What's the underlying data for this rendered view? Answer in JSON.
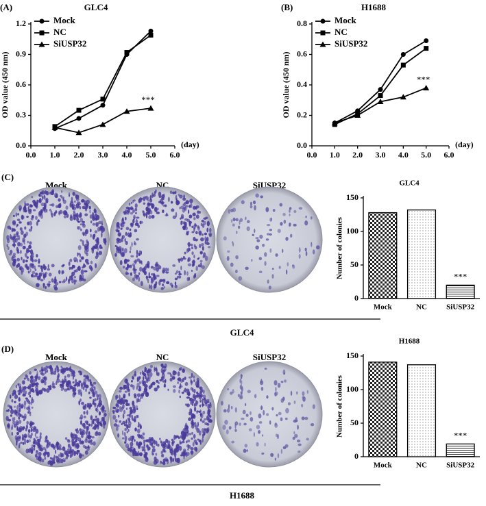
{
  "chart_data": [
    {
      "type": "line",
      "panel": "(A)",
      "title": "GLC4",
      "ylabel": "OD value (450 nm)",
      "xlabel": "(day)",
      "annotation": "***",
      "x": [
        1,
        2,
        3,
        4,
        5
      ],
      "xlim": [
        0,
        6
      ],
      "xticks": [
        {
          "value": 0,
          "label": "0.0"
        },
        {
          "value": 1,
          "label": "1.0"
        },
        {
          "value": 2,
          "label": "2.0"
        },
        {
          "value": 3,
          "label": "3.0"
        },
        {
          "value": 4,
          "label": "4.0"
        },
        {
          "value": 5,
          "label": "5.0"
        },
        {
          "value": 6,
          "label": "6.0"
        }
      ],
      "ylim": [
        0,
        1.2
      ],
      "yticks": [
        {
          "value": 0,
          "label": "0.0"
        },
        0.3,
        0.6,
        0.9,
        1.2
      ],
      "series": [
        {
          "name": "Mock",
          "color": "#000000",
          "marker": "circle",
          "values": [
            0.17,
            0.27,
            0.4,
            0.9,
            1.13
          ]
        },
        {
          "name": "NC",
          "color": "#000000",
          "marker": "square",
          "values": [
            0.19,
            0.35,
            0.46,
            0.92,
            1.09
          ]
        },
        {
          "name": "SiUSP32",
          "color": "#000000",
          "marker": "triangle",
          "values": [
            0.18,
            0.13,
            0.21,
            0.34,
            0.37
          ]
        }
      ]
    },
    {
      "type": "line",
      "panel": "(B)",
      "title": "H1688",
      "ylabel": "OD value (450 nm)",
      "xlabel": "(day)",
      "annotation": "***",
      "x": [
        1,
        2,
        3,
        4,
        5
      ],
      "xlim": [
        0,
        6
      ],
      "xticks": [
        {
          "value": 0,
          "label": "0.0"
        },
        {
          "value": 1,
          "label": "1.0"
        },
        {
          "value": 2,
          "label": "2.0"
        },
        {
          "value": 3,
          "label": "3.0"
        },
        {
          "value": 4,
          "label": "4.0"
        },
        {
          "value": 5,
          "label": "5.0"
        },
        {
          "value": 6,
          "label": "6.0"
        }
      ],
      "ylim": [
        0,
        0.8
      ],
      "yticks": [
        {
          "value": 0,
          "label": "0.0"
        },
        0.2,
        0.4,
        0.6,
        0.8
      ],
      "series": [
        {
          "name": "Mock",
          "color": "#000000",
          "marker": "circle",
          "values": [
            0.15,
            0.23,
            0.37,
            0.6,
            0.69
          ]
        },
        {
          "name": "NC",
          "color": "#000000",
          "marker": "square",
          "values": [
            0.14,
            0.21,
            0.33,
            0.53,
            0.64
          ]
        },
        {
          "name": "SiUSP32",
          "color": "#000000",
          "marker": "triangle",
          "values": [
            0.15,
            0.2,
            0.29,
            0.32,
            0.38
          ]
        }
      ]
    },
    {
      "type": "bar",
      "title": "GLC4",
      "ylabel": "Number of colonies",
      "annotation": "***",
      "categories": [
        "Mock",
        "NC",
        "SiUSP32"
      ],
      "values": [
        128,
        132,
        20
      ],
      "patterns": [
        "checker",
        "dots",
        "stripes"
      ],
      "ylim": [
        0,
        150
      ],
      "yticks": [
        0,
        50,
        100,
        150
      ]
    },
    {
      "type": "bar",
      "title": "H1688",
      "ylabel": "Number of colonies",
      "annotation": "***",
      "categories": [
        "Mock",
        "NC",
        "SiUSP32"
      ],
      "values": [
        141,
        137,
        19
      ],
      "patterns": [
        "checker",
        "dots",
        "stripes"
      ],
      "ylim": [
        0,
        150
      ],
      "yticks": [
        0,
        50,
        100,
        150
      ]
    }
  ],
  "photos": [
    {
      "panel": "(C)",
      "labels": [
        "Mock",
        "NC",
        "SiUSP32"
      ],
      "caption": "GLC4"
    },
    {
      "panel": "(D)",
      "labels": [
        "Mock",
        "NC",
        "SiUSP32"
      ],
      "caption": "H1688"
    }
  ]
}
